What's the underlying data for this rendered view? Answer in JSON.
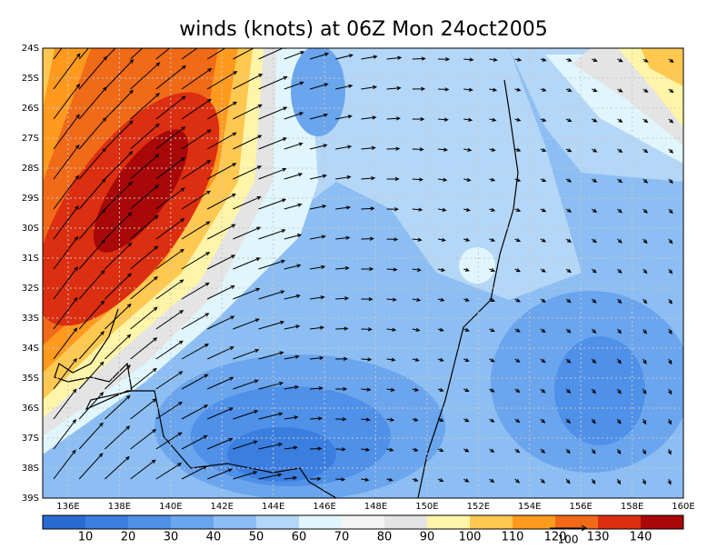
{
  "map": {
    "title": "winds (knots) at 06Z Mon 24oct2005",
    "lat_labels": [
      "24S",
      "25S",
      "26S",
      "27S",
      "28S",
      "29S",
      "30S",
      "31S",
      "32S",
      "33S",
      "34S",
      "35S",
      "36S",
      "37S",
      "38S",
      "39S"
    ],
    "lon_labels": [
      "136E",
      "138E",
      "140E",
      "142E",
      "144E",
      "146E",
      "148E",
      "150E",
      "152E",
      "154E",
      "156E",
      "158E",
      "160E"
    ],
    "colorbar": {
      "colors": [
        "#2a6bd1",
        "#3a7ee0",
        "#4f90e8",
        "#6aa5ee",
        "#8cbef3",
        "#b4d6f7",
        "#e0f6fc",
        "#f4f4f4",
        "#e4e4e4",
        "#fff5a8",
        "#ffc850",
        "#ff9a1e",
        "#f06a18",
        "#dc2e10",
        "#a80808"
      ],
      "labels": [
        "10",
        "20",
        "30",
        "40",
        "50",
        "60",
        "70",
        "80",
        "90",
        "100",
        "110",
        "120",
        "130",
        "140"
      ]
    },
    "vector_label": "100"
  }
}
